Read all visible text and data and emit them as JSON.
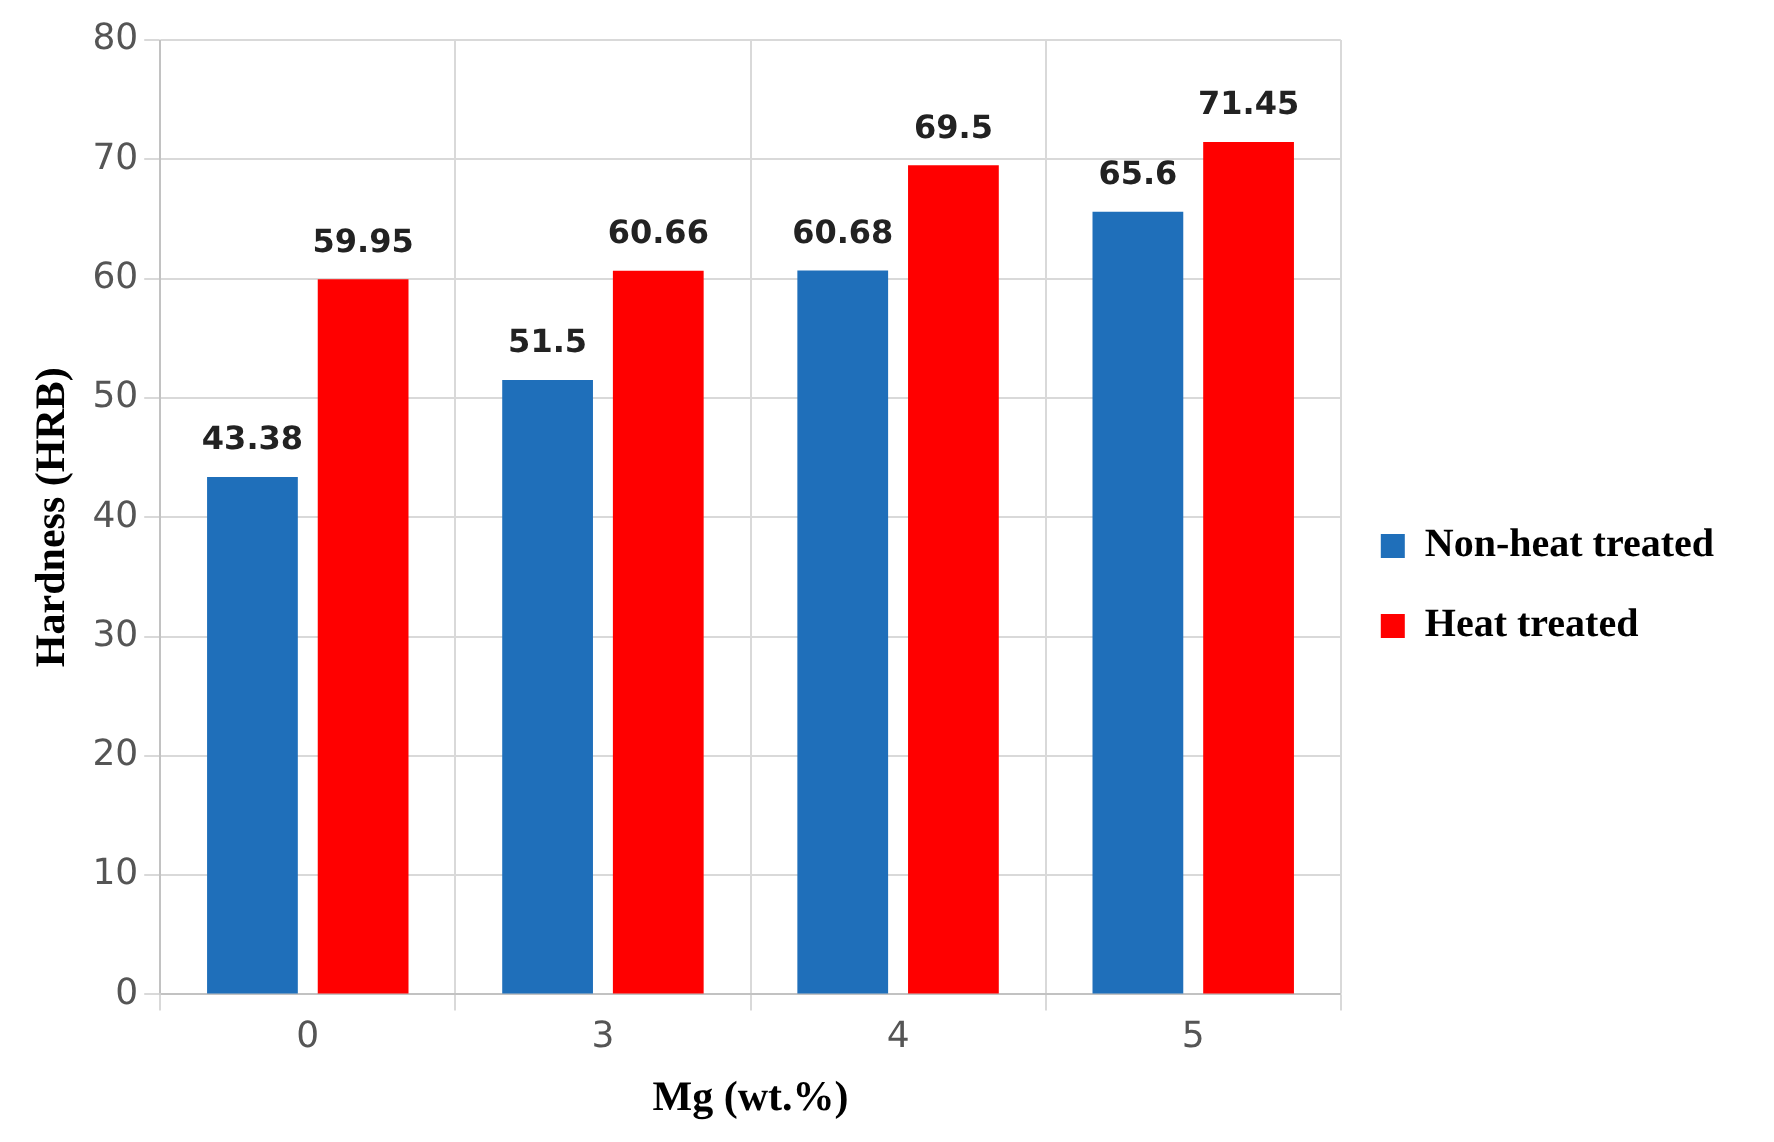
{
  "chart_data": {
    "type": "bar",
    "xlabel": "Mg (wt.%)",
    "ylabel": "Hardness (HRB)",
    "categories": [
      "0",
      "3",
      "4",
      "5"
    ],
    "series": [
      {
        "name": "Non-heat treated",
        "color": "#1f6fba",
        "values": [
          43.38,
          51.5,
          60.68,
          65.6
        ]
      },
      {
        "name": "Heat treated",
        "color": "#ff0000",
        "values": [
          59.95,
          60.66,
          69.5,
          71.45
        ]
      }
    ],
    "ylim": [
      0,
      80
    ],
    "yticks": [
      0,
      10,
      20,
      30,
      40,
      50,
      60,
      70,
      80
    ],
    "grid": true,
    "legend": "right",
    "data_labels": true
  }
}
